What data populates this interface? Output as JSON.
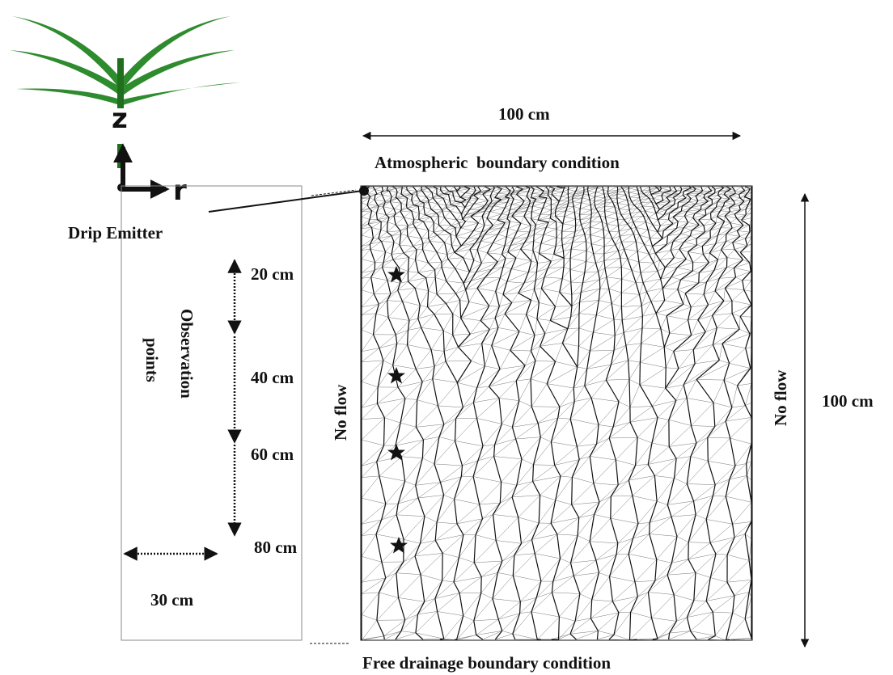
{
  "axes": {
    "z": "z",
    "r": "r"
  },
  "labels": {
    "drip_emitter": "Drip Emitter",
    "width": "100 cm",
    "top_boundary": "Atmospheric  boundary condition",
    "bottom_boundary": "Free drainage boundary condition",
    "left_boundary": "No flow",
    "right_boundary": "No flow",
    "depth": "100 cm",
    "radius": "30 cm"
  },
  "observation": {
    "title": [
      "Observation",
      "points"
    ],
    "depths": [
      "20 cm",
      "40 cm",
      "60 cm",
      "80 cm"
    ]
  }
}
